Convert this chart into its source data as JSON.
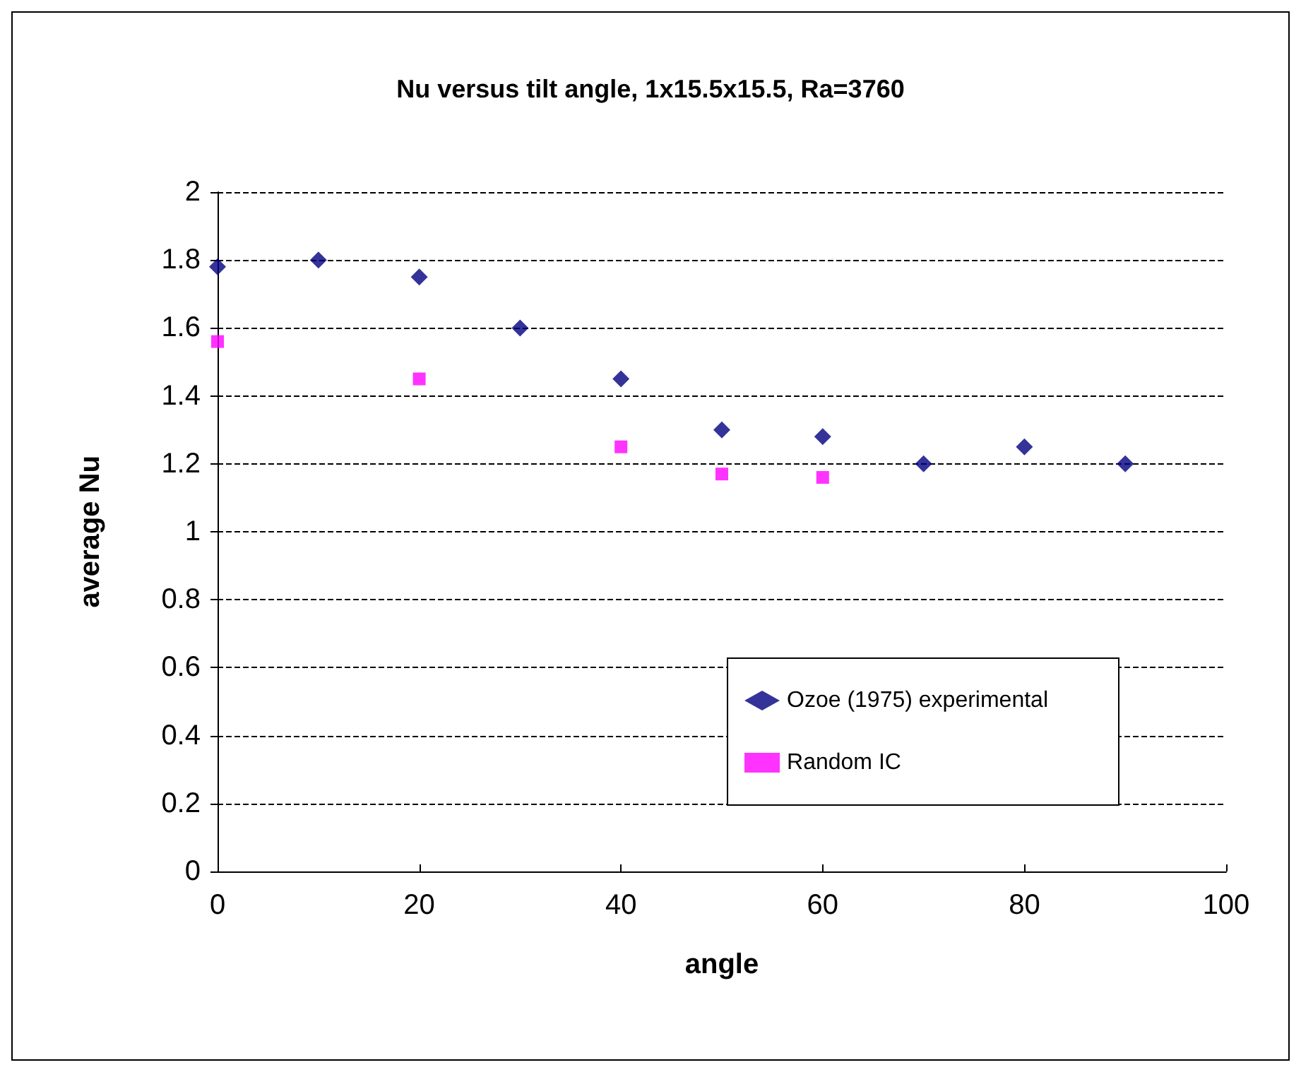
{
  "chart_data": {
    "type": "scatter",
    "title": "Nu versus tilt angle, 1x15.5x15.5, Ra=3760",
    "xlabel": "angle",
    "ylabel": "average Nu",
    "series": [
      {
        "name": "Ozoe (1975) experimental",
        "color": "#000080",
        "marker": "diamond",
        "x": [
          0,
          10,
          20,
          30,
          40,
          50,
          60,
          70,
          80,
          90
        ],
        "values": [
          1.78,
          1.8,
          1.75,
          1.6,
          1.45,
          1.3,
          1.28,
          1.2,
          1.25,
          1.2
        ]
      },
      {
        "name": "Random IC",
        "color": "#ff00ff",
        "marker": "square",
        "x": [
          0,
          20,
          40,
          50,
          60
        ],
        "values": [
          1.56,
          1.45,
          1.25,
          1.17,
          1.16
        ]
      }
    ],
    "xlim": [
      0,
      100
    ],
    "xticks": [
      0,
      20,
      40,
      60,
      80,
      100
    ],
    "ylim": [
      0,
      2
    ],
    "yticks": [
      0,
      0.2,
      0.4,
      0.6,
      0.8,
      1,
      1.2,
      1.4,
      1.6,
      1.8,
      2
    ],
    "grid": "y",
    "legend": "bottom right"
  }
}
